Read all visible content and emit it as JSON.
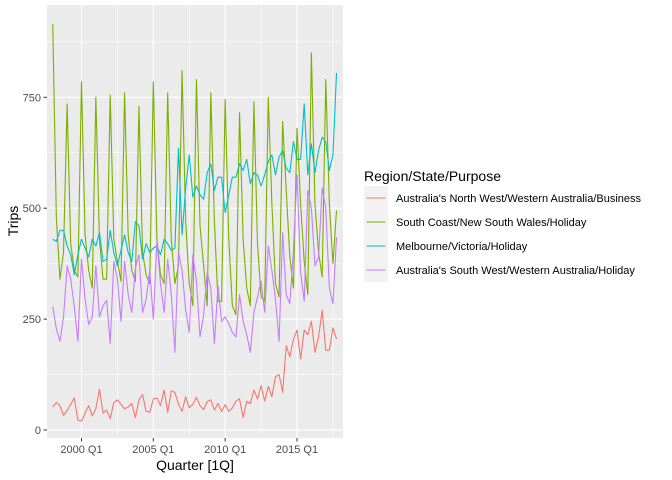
{
  "chart_data": {
    "type": "line",
    "xlabel": "Quarter [1Q]",
    "ylabel": "Trips",
    "x_tick_labels": [
      "2000 Q1",
      "2005 Q1",
      "2010 Q1",
      "2015 Q1"
    ],
    "x_tick_values": [
      2000,
      2005,
      2010,
      2015
    ],
    "y_tick_labels": [
      "0",
      "250",
      "500",
      "750"
    ],
    "y_tick_values": [
      0,
      250,
      500,
      750
    ],
    "xlim": [
      1997.6,
      2018.2
    ],
    "ylim": [
      -18,
      958
    ],
    "grid": true,
    "legend": {
      "title": "Region/State/Purpose",
      "placement": "right"
    },
    "x": [
      1998.0,
      1998.25,
      1998.5,
      1998.75,
      1999.0,
      1999.25,
      1999.5,
      1999.75,
      2000.0,
      2000.25,
      2000.5,
      2000.75,
      2001.0,
      2001.25,
      2001.5,
      2001.75,
      2002.0,
      2002.25,
      2002.5,
      2002.75,
      2003.0,
      2003.25,
      2003.5,
      2003.75,
      2004.0,
      2004.25,
      2004.5,
      2004.75,
      2005.0,
      2005.25,
      2005.5,
      2005.75,
      2006.0,
      2006.25,
      2006.5,
      2006.75,
      2007.0,
      2007.25,
      2007.5,
      2007.75,
      2008.0,
      2008.25,
      2008.5,
      2008.75,
      2009.0,
      2009.25,
      2009.5,
      2009.75,
      2010.0,
      2010.25,
      2010.5,
      2010.75,
      2011.0,
      2011.25,
      2011.5,
      2011.75,
      2012.0,
      2012.25,
      2012.5,
      2012.75,
      2013.0,
      2013.25,
      2013.5,
      2013.75,
      2014.0,
      2014.25,
      2014.5,
      2014.75,
      2015.0,
      2015.25,
      2015.5,
      2015.75,
      2016.0,
      2016.25,
      2016.5,
      2016.75,
      2017.0,
      2017.25,
      2017.5,
      2017.75
    ],
    "series": [
      {
        "name": "Australia's North West/Western Australia/Business",
        "color": "#F8766D",
        "values": [
          52,
          62,
          55,
          33,
          44,
          58,
          72,
          22,
          20,
          38,
          55,
          32,
          48,
          92,
          38,
          45,
          26,
          62,
          68,
          58,
          48,
          52,
          60,
          28,
          68,
          80,
          42,
          40,
          70,
          72,
          55,
          90,
          40,
          88,
          85,
          58,
          42,
          75,
          50,
          58,
          74,
          55,
          46,
          64,
          68,
          45,
          60,
          42,
          57,
          42,
          50,
          65,
          70,
          28,
          65,
          60,
          90,
          70,
          100,
          65,
          98,
          75,
          120,
          125,
          85,
          190,
          165,
          205,
          225,
          160,
          225,
          215,
          245,
          175,
          210,
          270,
          180,
          180,
          230,
          205
        ]
      },
      {
        "name": "South Coast/New South Wales/Holiday",
        "color": "#7CAE00",
        "values": [
          915,
          480,
          340,
          400,
          735,
          420,
          360,
          345,
          785,
          440,
          360,
          320,
          750,
          430,
          340,
          340,
          755,
          430,
          380,
          335,
          760,
          440,
          360,
          335,
          730,
          400,
          350,
          330,
          785,
          430,
          350,
          330,
          760,
          430,
          330,
          370,
          810,
          470,
          330,
          280,
          790,
          460,
          370,
          280,
          760,
          470,
          290,
          290,
          745,
          430,
          280,
          260,
          715,
          430,
          320,
          280,
          740,
          420,
          300,
          290,
          750,
          510,
          330,
          300,
          695,
          540,
          390,
          320,
          680,
          510,
          380,
          305,
          850,
          510,
          400,
          345,
          790,
          510,
          375,
          495
        ]
      },
      {
        "name": "Melbourne/Victoria/Holiday",
        "color": "#00BFC4",
        "values": [
          430,
          425,
          450,
          450,
          415,
          395,
          350,
          395,
          430,
          410,
          390,
          430,
          415,
          445,
          380,
          385,
          450,
          400,
          370,
          405,
          440,
          400,
          380,
          470,
          460,
          385,
          420,
          400,
          410,
          415,
          395,
          430,
          420,
          405,
          410,
          635,
          440,
          545,
          620,
          525,
          550,
          530,
          520,
          580,
          600,
          540,
          570,
          570,
          490,
          530,
          570,
          570,
          600,
          585,
          610,
          555,
          580,
          575,
          550,
          575,
          605,
          620,
          575,
          615,
          630,
          590,
          580,
          650,
          610,
          610,
          735,
          575,
          645,
          580,
          630,
          660,
          650,
          585,
          620,
          805
        ]
      },
      {
        "name": "Australia's South West/Western Australia/Holiday",
        "color": "#C77CFF",
        "values": [
          278,
          228,
          200,
          255,
          370,
          340,
          278,
          200,
          385,
          295,
          238,
          255,
          370,
          255,
          280,
          292,
          195,
          380,
          340,
          245,
          380,
          305,
          265,
          365,
          395,
          265,
          295,
          360,
          250,
          425,
          330,
          265,
          385,
          305,
          175,
          400,
          360,
          270,
          220,
          395,
          335,
          210,
          260,
          355,
          320,
          195,
          325,
          245,
          255,
          240,
          220,
          210,
          305,
          245,
          215,
          175,
          265,
          300,
          335,
          265,
          415,
          360,
          295,
          200,
          445,
          305,
          285,
          405,
          575,
          355,
          290,
          540,
          500,
          370,
          390,
          545,
          500,
          320,
          285,
          435
        ]
      }
    ]
  }
}
